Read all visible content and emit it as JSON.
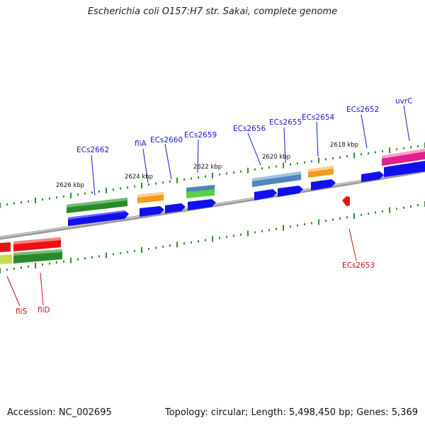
{
  "header": {
    "title": "Escherichia coli O157:H7 str. Sakai, complete genome"
  },
  "footer": {
    "accession": "Accession: NC_002695",
    "summary": "Topology: circular; Length: 5,498,450 bp; Genes: 5,369"
  },
  "colors": {
    "forward_label": "#1a1acc",
    "reverse_label": "#cc1111",
    "backbone": "#8a8a8a",
    "tick": "#2f8f2f",
    "cds": "#1010ee",
    "dark_green": "#2a8a2a",
    "orange": "#f39a1a",
    "steel_blue": "#4f86b8",
    "red": "#ee1111",
    "magenta": "#e0208a",
    "light_green": "#7ddc4a"
  },
  "scale": {
    "tick_labels": [
      {
        "id": "kbp-2626",
        "text": "2626 kbp"
      },
      {
        "id": "kbp-2624",
        "text": "2624 kbp"
      },
      {
        "id": "kbp-2622",
        "text": "2622 kbp"
      },
      {
        "id": "kbp-2620",
        "text": "2620 kbp"
      },
      {
        "id": "kbp-2618",
        "text": "2618 kbp"
      }
    ]
  },
  "genes": [
    {
      "id": "ECs2662",
      "label": "ECs2662",
      "strand": "forward"
    },
    {
      "id": "fliA",
      "label": "fliA",
      "strand": "forward"
    },
    {
      "id": "ECs2660",
      "label": "ECs2660",
      "strand": "forward"
    },
    {
      "id": "ECs2659",
      "label": "ECs2659",
      "strand": "forward"
    },
    {
      "id": "ECs2656",
      "label": "ECs2656",
      "strand": "forward"
    },
    {
      "id": "ECs2655",
      "label": "ECs2655",
      "strand": "forward"
    },
    {
      "id": "ECs2654",
      "label": "ECs2654",
      "strand": "forward"
    },
    {
      "id": "ECs2652",
      "label": "ECs2652",
      "strand": "forward"
    },
    {
      "id": "uvrC",
      "label": "uvrC",
      "strand": "forward"
    },
    {
      "id": "ECs2653",
      "label": "ECs2653",
      "strand": "reverse"
    },
    {
      "id": "fliS",
      "label": "fliS",
      "strand": "reverse"
    },
    {
      "id": "fliD",
      "label": "fliD",
      "strand": "reverse"
    }
  ]
}
